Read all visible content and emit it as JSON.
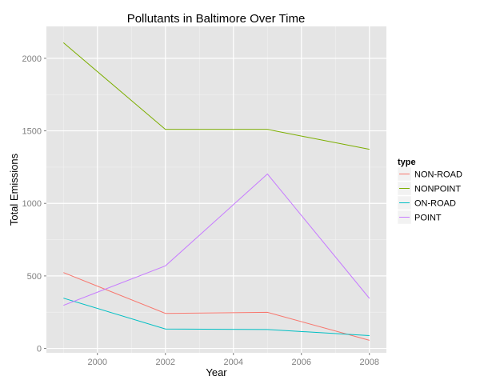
{
  "chart_data": {
    "type": "line",
    "title": "Pollutants in Baltimore Over Time",
    "xlabel": "Year",
    "ylabel": "Total Emissions",
    "xlim": [
      1998.5,
      2008.5
    ],
    "ylim": [
      -30,
      2220
    ],
    "x_ticks": [
      2000,
      2002,
      2004,
      2006,
      2008
    ],
    "y_ticks": [
      0,
      500,
      1000,
      1500,
      2000
    ],
    "grid": true,
    "legend_position": "right",
    "legend_title": "type",
    "x": [
      1999,
      2002,
      2005,
      2008
    ],
    "series": [
      {
        "name": "NON-ROAD",
        "color": "#F8766D",
        "values": [
          522.9,
          242.0,
          248.9,
          55.8
        ]
      },
      {
        "name": "NONPOINT",
        "color": "#7CAE00",
        "values": [
          2107.6,
          1509.5,
          1509.5,
          1373.2
        ]
      },
      {
        "name": "ON-ROAD",
        "color": "#00BFC4",
        "values": [
          346.8,
          134.3,
          130.4,
          88.3
        ]
      },
      {
        "name": "POINT",
        "color": "#C77CFF",
        "values": [
          296.8,
          569.3,
          1202.5,
          344.98
        ]
      }
    ]
  }
}
